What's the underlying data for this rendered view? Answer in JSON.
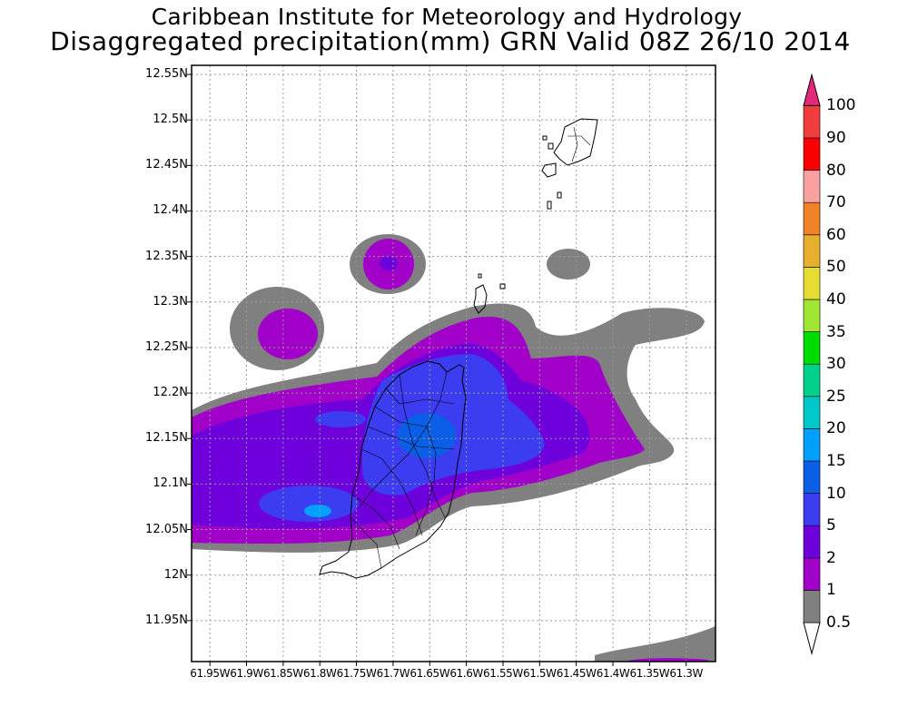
{
  "header": {
    "line1": "Caribbean Institute for Meteorology and Hydrology",
    "line2": "Disaggregated precipitation(mm) GRN Valid 08Z 26/10 2014"
  },
  "map": {
    "lat_labels": [
      "12.55N",
      "12.5N",
      "12.45N",
      "12.4N",
      "12.35N",
      "12.3N",
      "12.25N",
      "12.2N",
      "12.15N",
      "12.1N",
      "12.05N",
      "12N",
      "11.95N"
    ],
    "lon_labels": [
      "61.95W",
      "61.9W",
      "61.85W",
      "61.8W",
      "61.75W",
      "61.7W",
      "61.65W",
      "61.6W",
      "61.55W",
      "61.5W",
      "61.45W",
      "61.4W",
      "61.35W",
      "61.3W"
    ],
    "lat_range": [
      11.905,
      12.56
    ],
    "lon_range": [
      -61.975,
      -61.26
    ],
    "grid": true
  },
  "colorbar": {
    "labels": [
      "0.5",
      "1",
      "2",
      "5",
      "10",
      "15",
      "20",
      "25",
      "30",
      "35",
      "40",
      "50",
      "60",
      "70",
      "80",
      "90",
      "100"
    ],
    "colors": [
      "#ffffff",
      "#808080",
      "#a000c8",
      "#6e00dc",
      "#3c3cf0",
      "#0a5fe6",
      "#00a0ff",
      "#00c8c8",
      "#00d28c",
      "#00dc00",
      "#a0e632",
      "#e6dc32",
      "#e6af2d",
      "#f08228",
      "#faa0a0",
      "#fa0000",
      "#f03c3c",
      "#e6287a"
    ]
  }
}
